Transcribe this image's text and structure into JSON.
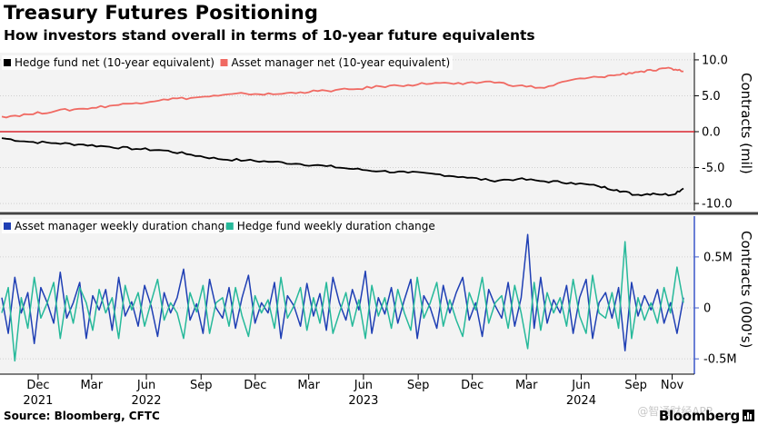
{
  "title": "Treasury Futures Positioning",
  "subtitle": "How investors stand overall in terms of 10-year future equivalents",
  "source": "Source: Bloomberg, CFTC",
  "watermark": "@智通财经APP",
  "logo": "Bloomberg",
  "colors": {
    "hedge_net": "#000000",
    "asset_net": "#f06a63",
    "zero_line": "#d9262f",
    "asset_weekly": "#1f3fb4",
    "hedge_weekly": "#26b99a",
    "axis_blue": "#3b57c9"
  },
  "chart_data": [
    {
      "type": "line",
      "ylabel": "Contracts (mil)",
      "ylim": [
        -11,
        11
      ],
      "yticks": [
        "10.0",
        "5.0",
        "0.0",
        "-5.0",
        "-10.0"
      ],
      "legend_position": "top-left",
      "series": [
        {
          "name": "Hedge fund net (10-year equivalent)",
          "x": [
            "2021-10-01",
            "2021-11-15",
            "2021-12-31",
            "2022-02-15",
            "2022-03-31",
            "2022-05-15",
            "2022-06-30",
            "2022-08-15",
            "2022-09-30",
            "2022-11-15",
            "2022-12-31",
            "2023-02-15",
            "2023-03-31",
            "2023-05-15",
            "2023-06-30",
            "2023-08-15",
            "2023-09-30",
            "2023-11-15",
            "2023-12-31",
            "2024-02-15",
            "2024-03-31",
            "2024-05-15",
            "2024-06-30",
            "2024-07-31",
            "2024-08-31",
            "2024-09-30",
            "2024-10-31",
            "2024-11-20"
          ],
          "values": [
            -0.9,
            -1.4,
            -1.6,
            -1.8,
            -2.1,
            -2.4,
            -2.6,
            -3.2,
            -3.8,
            -4.0,
            -4.2,
            -4.5,
            -4.8,
            -5.2,
            -5.5,
            -5.7,
            -5.9,
            -6.3,
            -6.8,
            -6.6,
            -6.9,
            -7.1,
            -7.6,
            -8.1,
            -8.8,
            -8.6,
            -8.8,
            -7.9
          ]
        },
        {
          "name": "Asset manager net (10-year equivalent)",
          "x": [
            "2021-10-01",
            "2021-11-15",
            "2021-12-31",
            "2022-02-15",
            "2022-03-31",
            "2022-05-15",
            "2022-06-30",
            "2022-08-15",
            "2022-09-30",
            "2022-11-15",
            "2022-12-31",
            "2023-02-15",
            "2023-03-31",
            "2023-05-15",
            "2023-06-30",
            "2023-08-15",
            "2023-09-30",
            "2023-11-15",
            "2023-12-31",
            "2024-02-15",
            "2024-03-31",
            "2024-05-15",
            "2024-06-30",
            "2024-07-31",
            "2024-08-31",
            "2024-09-30",
            "2024-10-31",
            "2024-11-20"
          ],
          "values": [
            2.1,
            2.4,
            2.9,
            3.2,
            3.6,
            4.0,
            4.5,
            4.7,
            5.0,
            5.3,
            5.2,
            5.5,
            5.7,
            5.9,
            6.3,
            6.5,
            6.8,
            6.6,
            7.0,
            6.4,
            6.1,
            7.2,
            7.6,
            7.9,
            8.3,
            8.5,
            8.8,
            8.4
          ]
        }
      ]
    },
    {
      "type": "line",
      "ylabel": "Contracts (000's)",
      "ylim": [
        -0.65,
        0.9
      ],
      "yticks": [
        "0.5M",
        "0",
        "-0.5M"
      ],
      "legend_position": "top-left",
      "x_ticks": [
        {
          "month": "Dec",
          "year": "2021",
          "date": "2021-12-01"
        },
        {
          "month": "Mar",
          "year": "",
          "date": "2022-03-01"
        },
        {
          "month": "Jun",
          "year": "2022",
          "date": "2022-06-01"
        },
        {
          "month": "Sep",
          "year": "",
          "date": "2022-09-01"
        },
        {
          "month": "Dec",
          "year": "",
          "date": "2022-12-01"
        },
        {
          "month": "Mar",
          "year": "",
          "date": "2023-03-01"
        },
        {
          "month": "Jun",
          "year": "2023",
          "date": "2023-06-01"
        },
        {
          "month": "Sep",
          "year": "",
          "date": "2023-09-01"
        },
        {
          "month": "Dec",
          "year": "",
          "date": "2023-12-01"
        },
        {
          "month": "Mar",
          "year": "",
          "date": "2024-03-01"
        },
        {
          "month": "Jun",
          "year": "2024",
          "date": "2024-06-01"
        },
        {
          "month": "Sep",
          "year": "",
          "date": "2024-09-01"
        },
        {
          "month": "Nov",
          "year": "",
          "date": "2024-11-01"
        }
      ],
      "x_start": "2021-10-01",
      "x_end": "2024-11-20",
      "series": [
        {
          "name": "Asset manager weekly duration change",
          "values": [
            0.1,
            -0.25,
            0.3,
            -0.05,
            0.15,
            -0.35,
            0.2,
            0.05,
            -0.15,
            0.35,
            -0.1,
            0.05,
            0.25,
            -0.3,
            0.12,
            -0.02,
            0.18,
            -0.22,
            0.3,
            -0.08,
            0.06,
            -0.18,
            0.22,
            0.02,
            -0.28,
            0.15,
            -0.05,
            0.1,
            0.38,
            -0.12,
            0.04,
            -0.25,
            0.28,
            0.0,
            -0.1,
            0.2,
            -0.2,
            0.1,
            0.32,
            -0.15,
            0.05,
            -0.05,
            0.25,
            -0.3,
            0.12,
            0.02,
            -0.18,
            0.24,
            -0.08,
            0.14,
            -0.22,
            0.3,
            0.05,
            -0.12,
            0.18,
            -0.02,
            0.36,
            -0.25,
            0.1,
            -0.06,
            0.2,
            -0.15,
            0.08,
            0.28,
            -0.3,
            0.12,
            0.0,
            -0.2,
            0.22,
            -0.05,
            0.15,
            0.3,
            -0.12,
            0.05,
            -0.28,
            0.18,
            0.02,
            -0.1,
            0.25,
            -0.18,
            0.1,
            0.72,
            -0.2,
            0.3,
            -0.15,
            0.08,
            -0.05,
            0.22,
            -0.25,
            0.1,
            0.28,
            -0.3,
            0.05,
            0.15,
            -0.1,
            0.2,
            -0.42,
            0.25,
            -0.08,
            0.12,
            -0.02,
            0.18,
            -0.15,
            0.05,
            -0.25,
            0.1
          ],
          "values_note": ""
        },
        {
          "name": "Hedge fund weekly duration change",
          "values": [
            -0.05,
            0.2,
            -0.52,
            0.1,
            -0.2,
            0.3,
            -0.1,
            0.05,
            0.25,
            -0.3,
            0.12,
            -0.15,
            0.2,
            0.05,
            -0.22,
            0.18,
            -0.05,
            0.1,
            -0.3,
            0.22,
            -0.02,
            0.15,
            -0.18,
            0.06,
            0.28,
            -0.12,
            0.05,
            -0.05,
            -0.3,
            0.15,
            -0.04,
            0.22,
            -0.25,
            0.05,
            0.1,
            -0.18,
            0.2,
            -0.08,
            -0.28,
            0.12,
            -0.05,
            0.08,
            -0.2,
            0.3,
            -0.1,
            0.02,
            0.2,
            -0.22,
            0.1,
            -0.15,
            0.25,
            -0.25,
            -0.05,
            0.15,
            -0.18,
            0.08,
            -0.3,
            0.22,
            -0.08,
            0.1,
            -0.2,
            0.18,
            -0.05,
            -0.22,
            0.3,
            -0.1,
            0.05,
            0.25,
            -0.18,
            0.08,
            -0.12,
            -0.28,
            0.15,
            -0.02,
            0.3,
            -0.15,
            0.05,
            0.12,
            -0.2,
            0.22,
            -0.05,
            -0.4,
            0.25,
            -0.22,
            0.15,
            -0.05,
            0.1,
            -0.18,
            0.28,
            -0.08,
            -0.25,
            0.32,
            -0.05,
            -0.1,
            0.15,
            -0.2,
            0.65,
            -0.3,
            0.1,
            -0.12,
            0.05,
            -0.15,
            0.2,
            -0.05,
            0.4,
            0.05
          ]
        }
      ]
    }
  ]
}
